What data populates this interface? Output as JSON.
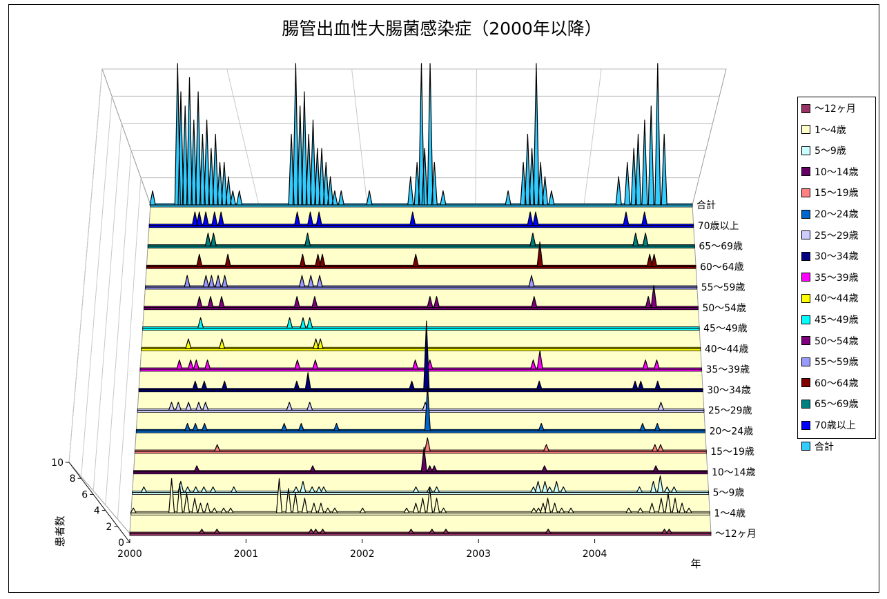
{
  "chart_data": {
    "type": "area",
    "title": "腸管出血性大腸菌感染症（2000年以降）",
    "xlabel": "年",
    "ylabel": "患者数",
    "ylim": [
      0,
      10
    ],
    "z_ticks": [
      "0",
      "2",
      "4",
      "6",
      "8",
      "10"
    ],
    "x_ticks": [
      "2000",
      "2001",
      "2002",
      "2003",
      "2004"
    ],
    "xlim": [
      2000,
      2005
    ],
    "legend_position": "right",
    "grid": true,
    "series": [
      {
        "name": "～12ヶ月",
        "depth_label": "～12ヶ月",
        "color": "#993366",
        "points": [
          [
            2000.62,
            1
          ],
          [
            2000.75,
            1
          ],
          [
            2001.56,
            1
          ],
          [
            2001.6,
            1
          ],
          [
            2001.66,
            1
          ],
          [
            2002.42,
            1
          ],
          [
            2002.6,
            1
          ],
          [
            2002.72,
            1
          ],
          [
            2003.6,
            1
          ],
          [
            2004.6,
            1
          ],
          [
            2004.64,
            1
          ]
        ]
      },
      {
        "name": "1～4歳",
        "depth_label": "1～4歳",
        "color": "#ffffcc",
        "points": [
          [
            2000.02,
            1
          ],
          [
            2000.35,
            7
          ],
          [
            2000.42,
            6
          ],
          [
            2000.48,
            4
          ],
          [
            2000.55,
            3
          ],
          [
            2000.6,
            2
          ],
          [
            2000.66,
            2
          ],
          [
            2000.72,
            1
          ],
          [
            2000.8,
            1
          ],
          [
            2000.86,
            1
          ],
          [
            2001.28,
            7
          ],
          [
            2001.36,
            5
          ],
          [
            2001.42,
            4
          ],
          [
            2001.5,
            3
          ],
          [
            2001.58,
            2
          ],
          [
            2001.64,
            2
          ],
          [
            2001.7,
            1
          ],
          [
            2001.76,
            1
          ],
          [
            2002.0,
            1
          ],
          [
            2002.38,
            1
          ],
          [
            2002.46,
            2
          ],
          [
            2002.52,
            3
          ],
          [
            2002.58,
            5
          ],
          [
            2002.64,
            3
          ],
          [
            2002.7,
            1
          ],
          [
            2003.48,
            1
          ],
          [
            2003.52,
            1
          ],
          [
            2003.56,
            2
          ],
          [
            2003.6,
            3
          ],
          [
            2003.66,
            2
          ],
          [
            2003.72,
            1
          ],
          [
            2003.8,
            1
          ],
          [
            2004.3,
            1
          ],
          [
            2004.4,
            1
          ],
          [
            2004.5,
            2
          ],
          [
            2004.58,
            3
          ],
          [
            2004.64,
            4
          ],
          [
            2004.7,
            3
          ],
          [
            2004.76,
            2
          ],
          [
            2004.82,
            1
          ]
        ]
      },
      {
        "name": "5～9歳",
        "depth_label": "5～9歳",
        "color": "#ccffff",
        "points": [
          [
            2000.1,
            1
          ],
          [
            2000.42,
            2
          ],
          [
            2000.48,
            1
          ],
          [
            2000.55,
            1
          ],
          [
            2000.62,
            1
          ],
          [
            2000.7,
            1
          ],
          [
            2000.88,
            1
          ],
          [
            2001.42,
            1
          ],
          [
            2001.48,
            2
          ],
          [
            2001.56,
            1
          ],
          [
            2001.62,
            1
          ],
          [
            2001.66,
            1
          ],
          [
            2002.46,
            1
          ],
          [
            2002.58,
            1
          ],
          [
            2002.64,
            1
          ],
          [
            2003.48,
            1
          ],
          [
            2003.52,
            2
          ],
          [
            2003.58,
            2
          ],
          [
            2003.62,
            1
          ],
          [
            2003.68,
            2
          ],
          [
            2003.74,
            1
          ],
          [
            2004.4,
            1
          ],
          [
            2004.52,
            2
          ],
          [
            2004.58,
            3
          ],
          [
            2004.64,
            1
          ],
          [
            2004.7,
            1
          ]
        ]
      },
      {
        "name": "10～14歳",
        "depth_label": "10～14歳",
        "color": "#660066",
        "points": [
          [
            2000.55,
            1
          ],
          [
            2001.56,
            1
          ],
          [
            2002.53,
            4
          ],
          [
            2002.58,
            1
          ],
          [
            2002.62,
            1
          ],
          [
            2003.58,
            1
          ],
          [
            2004.55,
            1
          ]
        ]
      },
      {
        "name": "15～19歳",
        "depth_label": "15～19歳",
        "color": "#ff8080",
        "points": [
          [
            2000.72,
            1
          ],
          [
            2002.56,
            2
          ],
          [
            2003.6,
            1
          ],
          [
            2004.55,
            1
          ],
          [
            2004.6,
            1
          ]
        ]
      },
      {
        "name": "20～24歳",
        "depth_label": "20～24歳",
        "color": "#0066cc",
        "points": [
          [
            2000.45,
            1
          ],
          [
            2000.52,
            1
          ],
          [
            2000.6,
            1
          ],
          [
            2001.3,
            1
          ],
          [
            2001.45,
            1
          ],
          [
            2001.76,
            1
          ],
          [
            2002.56,
            6
          ],
          [
            2003.56,
            1
          ],
          [
            2004.45,
            1
          ],
          [
            2004.58,
            1
          ]
        ]
      },
      {
        "name": "25～29歳",
        "depth_label": "25～29歳",
        "color": "#ccccff",
        "points": [
          [
            2000.3,
            1
          ],
          [
            2000.36,
            1
          ],
          [
            2000.45,
            1
          ],
          [
            2000.54,
            1
          ],
          [
            2000.6,
            1
          ],
          [
            2001.34,
            1
          ],
          [
            2001.52,
            1
          ],
          [
            2002.54,
            1
          ],
          [
            2004.62,
            1
          ]
        ]
      },
      {
        "name": "30～34歳",
        "depth_label": "30～34歳",
        "color": "#000080",
        "points": [
          [
            2000.5,
            1
          ],
          [
            2000.58,
            1
          ],
          [
            2000.76,
            1
          ],
          [
            2001.4,
            1
          ],
          [
            2001.5,
            2
          ],
          [
            2002.42,
            1
          ],
          [
            2002.55,
            8
          ],
          [
            2003.55,
            1
          ],
          [
            2004.4,
            1
          ],
          [
            2004.45,
            1
          ],
          [
            2004.6,
            1
          ]
        ]
      },
      {
        "name": "35～39歳",
        "depth_label": "35～39歳",
        "color": "#ff00ff",
        "points": [
          [
            2000.35,
            1
          ],
          [
            2000.45,
            1
          ],
          [
            2000.5,
            1
          ],
          [
            2000.6,
            1
          ],
          [
            2001.4,
            1
          ],
          [
            2001.56,
            1
          ],
          [
            2002.45,
            1
          ],
          [
            2002.58,
            1
          ],
          [
            2003.5,
            1
          ],
          [
            2003.56,
            2
          ],
          [
            2004.5,
            1
          ],
          [
            2004.6,
            1
          ]
        ]
      },
      {
        "name": "40～44歳",
        "depth_label": "40～44歳",
        "color": "#ffff00",
        "points": [
          [
            2000.42,
            1
          ],
          [
            2000.72,
            1
          ],
          [
            2001.56,
            1
          ],
          [
            2001.6,
            1
          ]
        ]
      },
      {
        "name": "45～49歳",
        "depth_label": "45～49歳",
        "color": "#00ffff",
        "points": [
          [
            2000.52,
            1
          ],
          [
            2001.32,
            1
          ],
          [
            2001.44,
            1
          ],
          [
            2001.5,
            1
          ]
        ]
      },
      {
        "name": "50～54歳",
        "depth_label": "50～54歳",
        "color": "#800080",
        "points": [
          [
            2000.5,
            1
          ],
          [
            2000.6,
            1
          ],
          [
            2000.7,
            1
          ],
          [
            2001.38,
            1
          ],
          [
            2001.54,
            1
          ],
          [
            2002.58,
            1
          ],
          [
            2002.64,
            1
          ],
          [
            2003.52,
            1
          ],
          [
            2004.55,
            1
          ],
          [
            2004.6,
            2
          ]
        ]
      },
      {
        "name": "55～59歳",
        "depth_label": "55～59歳",
        "color": "#9999ff",
        "points": [
          [
            2000.38,
            1
          ],
          [
            2000.55,
            1
          ],
          [
            2000.6,
            1
          ],
          [
            2000.66,
            1
          ],
          [
            2000.72,
            1
          ],
          [
            2001.42,
            1
          ],
          [
            2001.5,
            1
          ],
          [
            2001.58,
            1
          ],
          [
            2003.5,
            1
          ]
        ]
      },
      {
        "name": "60～64歳",
        "depth_label": "60～64歳",
        "color": "#800000",
        "points": [
          [
            2000.48,
            1
          ],
          [
            2000.74,
            1
          ],
          [
            2001.42,
            1
          ],
          [
            2001.56,
            1
          ],
          [
            2001.6,
            1
          ],
          [
            2002.45,
            1
          ],
          [
            2003.58,
            2
          ],
          [
            2004.58,
            1
          ],
          [
            2004.62,
            1
          ]
        ]
      },
      {
        "name": "65～69歳",
        "depth_label": "65～69歳",
        "color": "#008080",
        "points": [
          [
            2000.55,
            1
          ],
          [
            2000.6,
            1
          ],
          [
            2001.46,
            1
          ],
          [
            2003.52,
            1
          ],
          [
            2004.46,
            1
          ],
          [
            2004.55,
            1
          ]
        ]
      },
      {
        "name": "70歳以上",
        "depth_label": "70歳以上",
        "color": "#0000ff",
        "points": [
          [
            2000.42,
            1
          ],
          [
            2000.46,
            1
          ],
          [
            2000.52,
            1
          ],
          [
            2000.6,
            1
          ],
          [
            2000.66,
            1
          ],
          [
            2001.36,
            1
          ],
          [
            2001.48,
            1
          ],
          [
            2001.56,
            1
          ],
          [
            2002.42,
            1
          ],
          [
            2003.5,
            1
          ],
          [
            2003.55,
            1
          ],
          [
            2004.38,
            1
          ],
          [
            2004.55,
            1
          ]
        ]
      },
      {
        "name": "合計",
        "depth_label": "合計",
        "color": "#33ccff",
        "points": [
          [
            2000.02,
            1
          ],
          [
            2000.25,
            10
          ],
          [
            2000.28,
            8
          ],
          [
            2000.32,
            7
          ],
          [
            2000.36,
            9
          ],
          [
            2000.4,
            6
          ],
          [
            2000.44,
            8
          ],
          [
            2000.48,
            5
          ],
          [
            2000.52,
            6
          ],
          [
            2000.56,
            4
          ],
          [
            2000.6,
            5
          ],
          [
            2000.64,
            3
          ],
          [
            2000.68,
            3
          ],
          [
            2000.72,
            2
          ],
          [
            2000.76,
            1
          ],
          [
            2000.82,
            1
          ],
          [
            2001.3,
            5
          ],
          [
            2001.34,
            10
          ],
          [
            2001.38,
            7
          ],
          [
            2001.42,
            8
          ],
          [
            2001.46,
            5
          ],
          [
            2001.5,
            6
          ],
          [
            2001.54,
            4
          ],
          [
            2001.58,
            4
          ],
          [
            2001.62,
            3
          ],
          [
            2001.66,
            2
          ],
          [
            2001.7,
            1
          ],
          [
            2001.76,
            1
          ],
          [
            2002.02,
            1
          ],
          [
            2002.4,
            2
          ],
          [
            2002.46,
            3
          ],
          [
            2002.5,
            10
          ],
          [
            2002.53,
            4
          ],
          [
            2002.58,
            10
          ],
          [
            2002.62,
            3
          ],
          [
            2002.7,
            1
          ],
          [
            2003.3,
            1
          ],
          [
            2003.44,
            3
          ],
          [
            2003.48,
            5
          ],
          [
            2003.52,
            4
          ],
          [
            2003.56,
            10
          ],
          [
            2003.6,
            3
          ],
          [
            2003.64,
            2
          ],
          [
            2003.7,
            1
          ],
          [
            2004.32,
            2
          ],
          [
            2004.4,
            3
          ],
          [
            2004.46,
            4
          ],
          [
            2004.5,
            5
          ],
          [
            2004.56,
            6
          ],
          [
            2004.62,
            7
          ],
          [
            2004.68,
            10
          ],
          [
            2004.74,
            5
          ]
        ]
      }
    ]
  }
}
